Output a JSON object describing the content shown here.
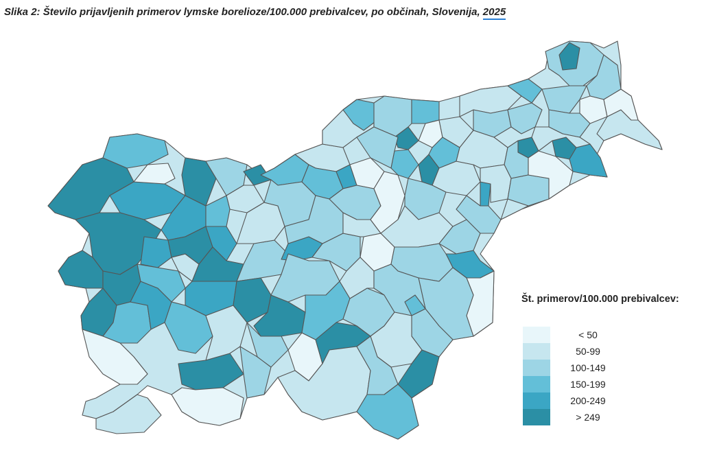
{
  "map": {
    "title_prefix": "Slika 2: Število prijavljenih primerov lymske borelioze/100.000 prebivalcev, po občinah, Slovenija, ",
    "title_year": "2025",
    "legend": {
      "title": "Št. primerov/100.000 prebivalcev:",
      "items": [
        {
          "label": "< 50",
          "color": "#e8f6fa"
        },
        {
          "label": "50-99",
          "color": "#c6e6ef"
        },
        {
          "label": "100-149",
          "color": "#9dd5e5"
        },
        {
          "label": "150-199",
          "color": "#63bfd8"
        },
        {
          "label": "200-249",
          "color": "#3ba6c4"
        },
        {
          "label": "> 249",
          "color": "#2b8fa5"
        }
      ]
    }
  }
}
